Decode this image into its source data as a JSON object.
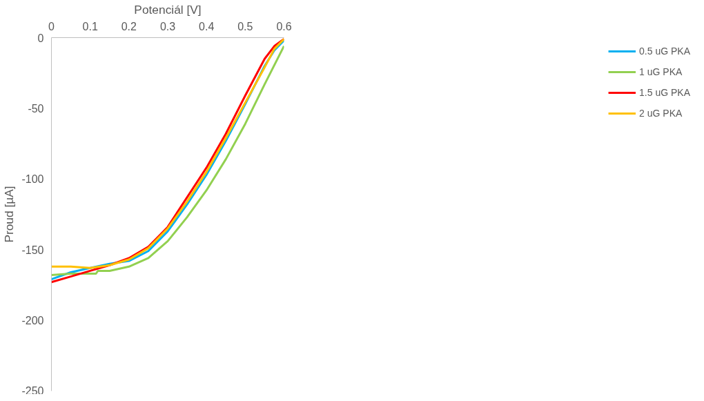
{
  "chart_data": {
    "type": "line",
    "xlabel": "Potenciál [V]",
    "ylabel": "Proud [µA]",
    "x": [
      0,
      0.05,
      0.1,
      0.15,
      0.2,
      0.25,
      0.3,
      0.35,
      0.4,
      0.45,
      0.5,
      0.55,
      0.575,
      0.6
    ],
    "xlim": [
      0,
      0.6
    ],
    "xticks": [
      0,
      0.1,
      0.2,
      0.3,
      0.4,
      0.5,
      0.6
    ],
    "ylim": [
      -250,
      0
    ],
    "yticks": [
      -250,
      -200,
      -150,
      -100,
      -50,
      0
    ],
    "grid": false,
    "legend": "right",
    "marker": "none",
    "line_style": "solid",
    "series": [
      {
        "name": "0.5 uG PKA",
        "color": "#00b0f0",
        "values": [
          -171,
          -166,
          -163,
          -160,
          -158,
          -151,
          -137,
          -118,
          -97,
          -73,
          -47,
          -20,
          -9,
          -2
        ]
      },
      {
        "name": "1 uG PKA",
        "color": "#92d050",
        "x": [
          0,
          0.05,
          0.1,
          0.115,
          0.12,
          0.15,
          0.2,
          0.25,
          0.3,
          0.35,
          0.4,
          0.45,
          0.5,
          0.55,
          0.6
        ],
        "values": [
          -168,
          -167,
          -167,
          -167,
          -165,
          -165,
          -162,
          -156,
          -144,
          -127,
          -108,
          -86,
          -61,
          -33,
          -6
        ]
      },
      {
        "name": "1.5 uG PKA",
        "color": "#ff0000",
        "values": [
          -173,
          -169,
          -165,
          -161,
          -156,
          -148,
          -134,
          -113,
          -92,
          -68,
          -41,
          -15,
          -6,
          -1
        ]
      },
      {
        "name": "2 uG PKA",
        "color": "#ffc000",
        "values": [
          -162,
          -162,
          -163,
          -161,
          -157,
          -149,
          -135,
          -116,
          -95,
          -71,
          -46,
          -21,
          -8,
          -1
        ]
      }
    ]
  }
}
